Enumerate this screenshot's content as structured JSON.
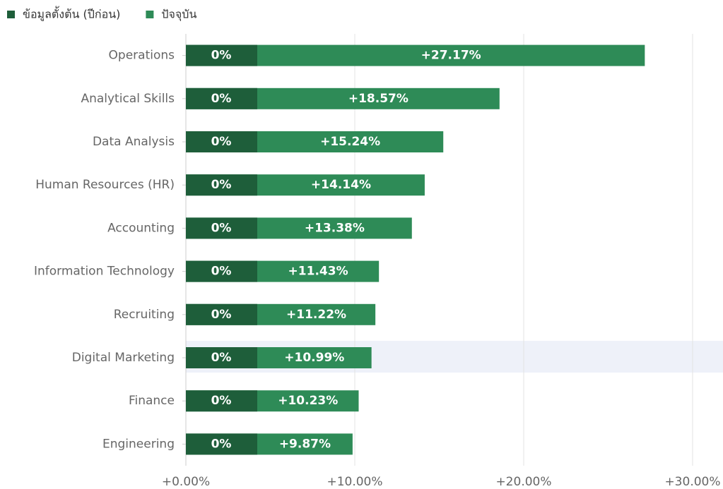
{
  "chart_data": {
    "type": "bar",
    "orientation": "horizontal",
    "stacked": true,
    "categories": [
      "Operations",
      "Analytical Skills",
      "Data Analysis",
      "Human Resources (HR)",
      "Accounting",
      "Information Technology",
      "Recruiting",
      "Digital Marketing",
      "Finance",
      "Engineering"
    ],
    "series": [
      {
        "name": "ข้อมูลตั้งต้น (ปีก่อน)",
        "color": "#1e5e3a",
        "values": [
          0,
          0,
          0,
          0,
          0,
          0,
          0,
          0,
          0,
          0
        ],
        "value_labels": [
          "0%",
          "0%",
          "0%",
          "0%",
          "0%",
          "0%",
          "0%",
          "0%",
          "0%",
          "0%"
        ]
      },
      {
        "name": "ปัจจุบัน",
        "color": "#2e8b57",
        "values": [
          27.17,
          18.57,
          15.24,
          14.14,
          13.38,
          11.43,
          11.22,
          10.99,
          10.23,
          9.87
        ],
        "value_labels": [
          "+27.17%",
          "+18.57%",
          "+15.24%",
          "+14.14%",
          "+13.38%",
          "+11.43%",
          "+11.22%",
          "+10.99%",
          "+10.23%",
          "+9.87%"
        ]
      }
    ],
    "xlim": [
      0,
      31.8
    ],
    "xticks": [
      {
        "value": 0,
        "label": "+0.00%"
      },
      {
        "value": 10,
        "label": "+10.00%"
      },
      {
        "value": 20,
        "label": "+20.00%"
      },
      {
        "value": 30,
        "label": "+30.00%"
      }
    ],
    "grid": true,
    "legend": "top-left"
  }
}
